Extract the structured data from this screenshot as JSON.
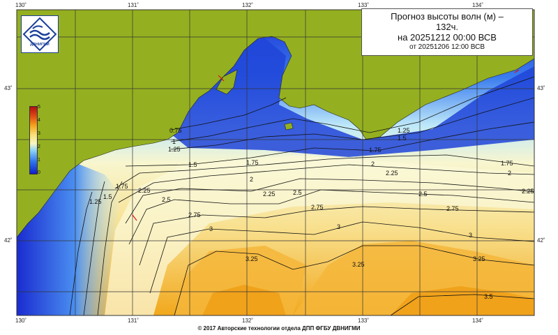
{
  "title": {
    "line1": "Прогноз высоты волн (м) –",
    "line2": "132ч.",
    "line3": "на 20251212 00:00 ВСВ",
    "line4": "от 20251206 12:00 ВСВ"
  },
  "footer": "© 2017 Авторские технологии отдела ДПП ФГБУ ДВНИГМИ",
  "logo_text": "ДВНИГМИ",
  "lon_ticks": [
    "130˚",
    "131˚",
    "132˚",
    "133˚",
    "134˚"
  ],
  "lat_ticks": [
    "43˚",
    "42˚"
  ],
  "legend": {
    "labels": [
      "5",
      "4",
      "3",
      "2",
      "1",
      "0"
    ]
  },
  "contour_labels": [
    "0.75",
    "1",
    "1.25",
    "1.5",
    "1.75",
    "2",
    "2.25",
    "2.5",
    "2.75",
    "3",
    "3.25",
    "3.5"
  ],
  "colors": {
    "land": "#94b020",
    "deep_blue": "#1a2cd0",
    "light_blue": "#bfe9f9",
    "pale_yellow": "#f8f6cf",
    "orange": "#f2a81c",
    "grid": "#333333"
  }
}
